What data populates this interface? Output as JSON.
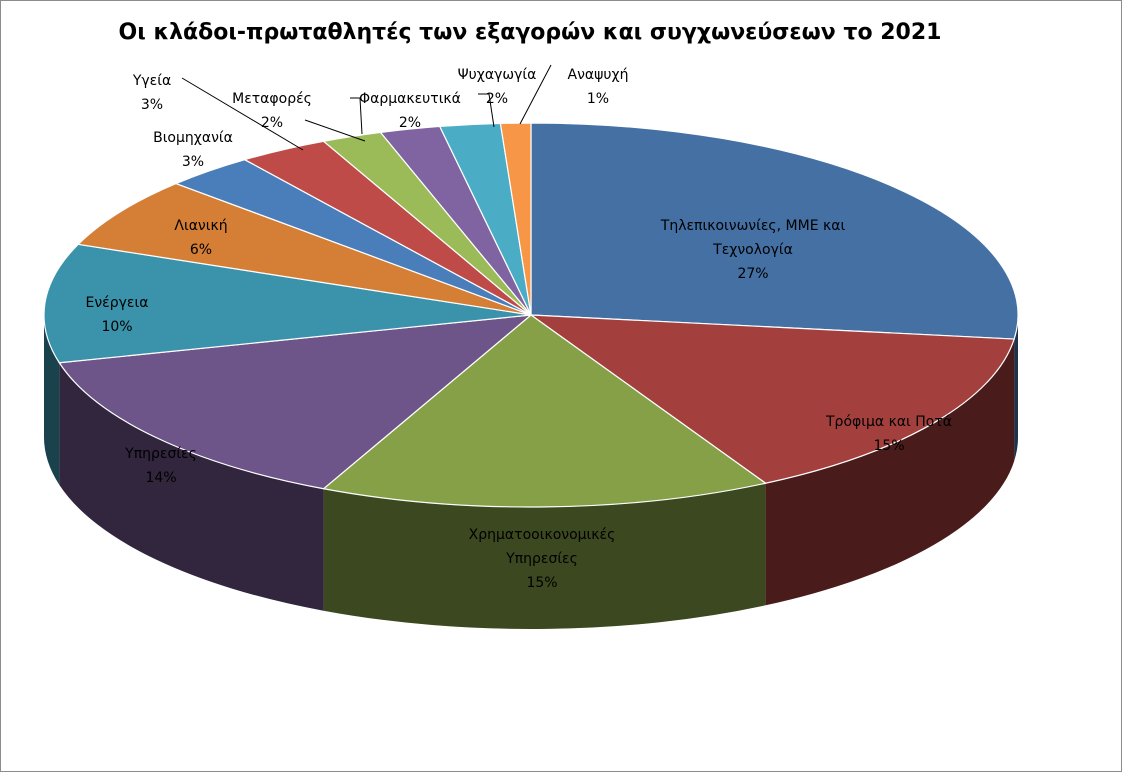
{
  "chart_data": {
    "type": "pie",
    "title": "Οι κλάδοι-πρωταθλητές των εξαγορών και συγχωνεύσεων το 2021",
    "three_d": true,
    "legend": "none",
    "slices": [
      {
        "label": "Τηλεπικοινωνίες, ΜΜΕ και Τεχνολογία",
        "value": 27,
        "percent_label": "27%",
        "color": "#4470A4"
      },
      {
        "label": "Τρόφιμα και Ποτά",
        "value": 15,
        "percent_label": "15%",
        "color": "#A3403D"
      },
      {
        "label": "Χρηματοοικονομικές Υπηρεσίες",
        "value": 15,
        "percent_label": "15%",
        "color": "#85A046"
      },
      {
        "label": "Υπηρεσίες",
        "value": 14,
        "percent_label": "14%",
        "color": "#6E5589"
      },
      {
        "label": "Ενέργεια",
        "value": 10,
        "percent_label": "10%",
        "color": "#3A93AA"
      },
      {
        "label": "Λιανική",
        "value": 6,
        "percent_label": "6%",
        "color": "#D47E36"
      },
      {
        "label": "Βιομηχανία",
        "value": 3,
        "percent_label": "3%",
        "color": "#4A7EBB"
      },
      {
        "label": "Υγεία",
        "value": 3,
        "percent_label": "3%",
        "color": "#BE4B48"
      },
      {
        "label": "Μεταφορές",
        "value": 2,
        "percent_label": "2%",
        "color": "#9BBB59"
      },
      {
        "label": "Φαρμακευτικά",
        "value": 2,
        "percent_label": "2%",
        "color": "#8064A2"
      },
      {
        "label": "Ψυχαγωγία",
        "value": 2,
        "percent_label": "2%",
        "color": "#4BACC6"
      },
      {
        "label": "Αναψυχή",
        "value": 1,
        "percent_label": "1%",
        "color": "#F79646"
      }
    ]
  }
}
